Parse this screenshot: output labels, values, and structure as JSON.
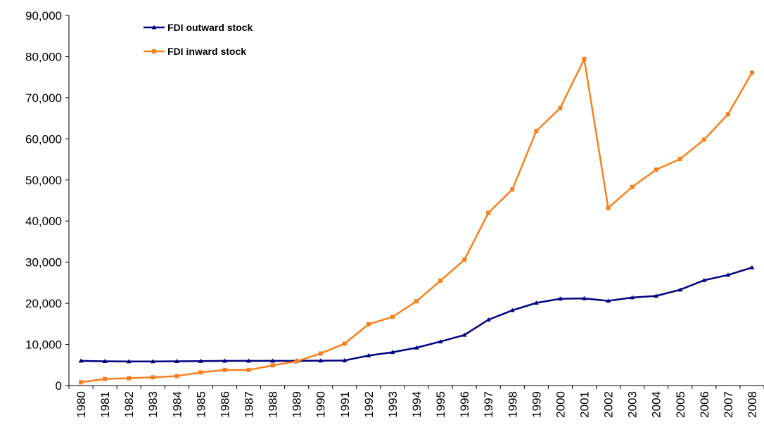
{
  "chart_data": {
    "type": "line",
    "categories": [
      "1980",
      "1981",
      "1982",
      "1983",
      "1984",
      "1985",
      "1986",
      "1987",
      "1988",
      "1989",
      "1990",
      "1991",
      "1992",
      "1993",
      "1994",
      "1995",
      "1996",
      "1997",
      "1998",
      "1999",
      "2000",
      "2001",
      "2002",
      "2003",
      "2004",
      "2005",
      "2006",
      "2007",
      "2008"
    ],
    "series": [
      {
        "name": "FDI outward stock",
        "color": "#000080",
        "marker": "triangle",
        "values": [
          6000,
          5900,
          5850,
          5850,
          5900,
          5950,
          6000,
          6000,
          6000,
          6000,
          6050,
          6100,
          7300,
          8100,
          9200,
          10700,
          12300,
          16000,
          18300,
          20100,
          21100,
          21200,
          20600,
          21400,
          21800,
          23300,
          25600,
          26900,
          28700
        ]
      },
      {
        "name": "FDI inward stock",
        "color": "#f7811e",
        "marker": "square",
        "values": [
          800,
          1600,
          1800,
          2000,
          2300,
          3200,
          3800,
          3800,
          4900,
          5900,
          7800,
          10200,
          14900,
          16700,
          20500,
          25500,
          30600,
          42000,
          47700,
          61900,
          67500,
          79400,
          43200,
          48300,
          52500,
          55100,
          59800,
          66000,
          76100
        ]
      }
    ],
    "ylim": [
      0,
      90000
    ],
    "yticks": [
      0,
      {
        "value": 10000,
        "label": "10,000"
      },
      {
        "value": 20000,
        "label": "20,000"
      },
      {
        "value": 30000,
        "label": "30,000"
      },
      {
        "value": 40000,
        "label": "40,000"
      },
      {
        "value": 50000,
        "label": "50,000"
      },
      {
        "value": 60000,
        "label": "60,000"
      },
      {
        "value": 70000,
        "label": "70,000"
      },
      {
        "value": 80000,
        "label": "80,000"
      },
      {
        "value": 90000,
        "label": "90,000"
      }
    ],
    "legend": "upper left"
  }
}
